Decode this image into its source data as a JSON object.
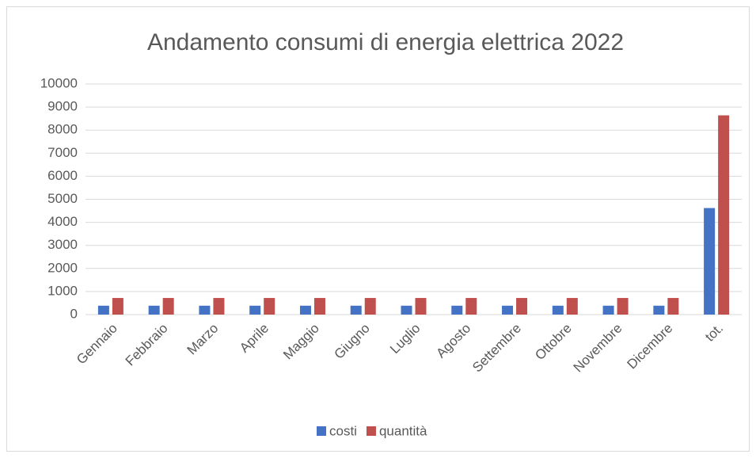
{
  "chart_data": {
    "type": "bar",
    "title": "Andamento consumi di energia elettrica 2022",
    "categories": [
      "Gennaio",
      "Febbraio",
      "Marzo",
      "Aprile",
      "Maggio",
      "Giugno",
      "Luglio",
      "Agosto",
      "Settembre",
      "Ottobre",
      "Novembre",
      "Dicembre",
      "tot."
    ],
    "series": [
      {
        "name": "costi",
        "color": "#4472c4",
        "values": [
          385,
          385,
          385,
          385,
          385,
          385,
          385,
          385,
          385,
          385,
          385,
          385,
          4620
        ]
      },
      {
        "name": "quantità",
        "color": "#c0504d",
        "values": [
          720,
          720,
          720,
          720,
          720,
          720,
          720,
          720,
          720,
          720,
          720,
          720,
          8640
        ]
      }
    ],
    "ylim": [
      0,
      10000
    ],
    "yticks": [
      0,
      1000,
      2000,
      3000,
      4000,
      5000,
      6000,
      7000,
      8000,
      9000,
      10000
    ],
    "grid": true,
    "legend": "bottom"
  }
}
